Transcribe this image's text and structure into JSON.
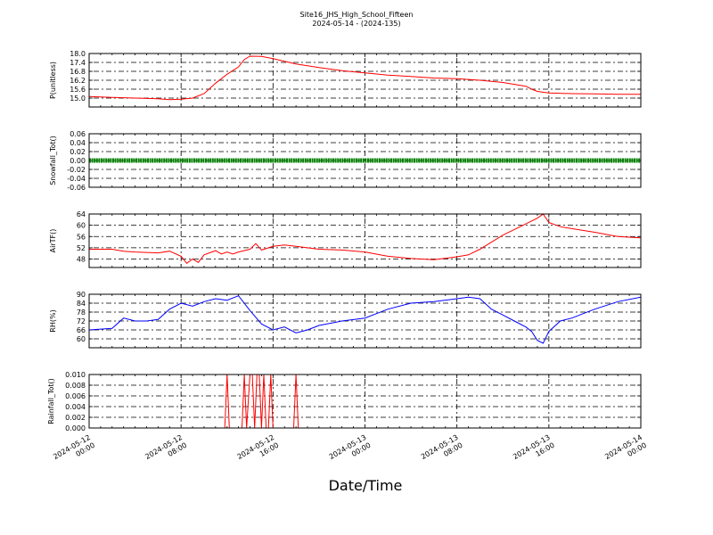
{
  "figure": {
    "title_line1": "Site16_JHS_High_School_Fifteen",
    "title_line2": "2024-05-14 - (2024-135)",
    "xlabel": "Date/Time",
    "x_ticks": [
      "2024-05-12\n00:00",
      "2024-05-12\n08:00",
      "2024-05-12\n16:00",
      "2024-05-13\n00:00",
      "2024-05-13\n08:00",
      "2024-05-13\n16:00",
      "2024-05-14\n00:00"
    ]
  },
  "chart_data": [
    {
      "type": "line",
      "ylabel": "P(unitless)",
      "ylim": [
        14.4,
        18.0
      ],
      "yticks": [
        "15.0",
        "15.6",
        "16.2",
        "16.8",
        "17.4",
        "18.0"
      ],
      "grid": true,
      "series": [
        {
          "color": "#ff0000",
          "x_hours": [
            0,
            2,
            4,
            6,
            7,
            8,
            9,
            10,
            11,
            12,
            13,
            13.5,
            14,
            15,
            16,
            18,
            20,
            22,
            24,
            26,
            28,
            30,
            32,
            34,
            36,
            38,
            38.5,
            39,
            40,
            42,
            44,
            46,
            48
          ],
          "values": [
            15.1,
            15.05,
            15.0,
            14.95,
            14.9,
            14.92,
            15.0,
            15.3,
            16.0,
            16.6,
            17.1,
            17.6,
            17.82,
            17.8,
            17.65,
            17.3,
            17.05,
            16.85,
            16.7,
            16.55,
            16.45,
            16.35,
            16.3,
            16.2,
            16.05,
            15.8,
            15.6,
            15.45,
            15.35,
            15.3,
            15.28,
            15.26,
            15.25
          ]
        }
      ]
    },
    {
      "type": "scatter",
      "ylabel": "Snowfall_Tot()",
      "ylim": [
        -0.06,
        0.06
      ],
      "yticks": [
        "-0.06",
        "-0.04",
        "-0.02",
        "0.00",
        "0.02",
        "0.04",
        "0.06"
      ],
      "grid": true,
      "series": [
        {
          "color": "#008000",
          "x_hours": [
            0,
            48
          ],
          "values": [
            0.0,
            0.0
          ]
        }
      ]
    },
    {
      "type": "line",
      "ylabel": "AirTF()",
      "ylim": [
        45,
        64
      ],
      "yticks": [
        "48",
        "52",
        "56",
        "60",
        "64"
      ],
      "grid": true,
      "series": [
        {
          "color": "#ff0000",
          "x_hours": [
            0,
            2,
            3,
            4,
            6,
            7,
            8,
            8.5,
            9,
            9.5,
            10,
            11,
            11.5,
            12,
            12.5,
            13,
            14,
            14.5,
            15,
            16,
            17,
            18,
            19,
            20,
            22,
            24,
            26,
            28,
            30,
            32,
            33,
            34,
            35,
            36,
            37,
            38,
            39,
            39.5,
            40,
            41,
            42,
            44,
            46,
            48
          ],
          "values": [
            51.5,
            51.5,
            50.8,
            50.5,
            50.2,
            50.8,
            49.0,
            46.5,
            48.0,
            46.8,
            49.5,
            51.0,
            49.8,
            50.5,
            49.8,
            50.5,
            51.5,
            53.5,
            51.2,
            52.5,
            53.0,
            52.5,
            52.0,
            51.5,
            51.2,
            50.5,
            49.0,
            48.2,
            47.8,
            48.8,
            49.5,
            51.5,
            54.0,
            56.5,
            58.5,
            60.5,
            62.5,
            64.0,
            61.0,
            59.5,
            58.8,
            57.5,
            56.0,
            55.5
          ]
        }
      ]
    },
    {
      "type": "line",
      "ylabel": "RH(%)",
      "ylim": [
        54,
        90
      ],
      "yticks": [
        "60",
        "66",
        "72",
        "78",
        "84",
        "90"
      ],
      "grid": true,
      "series": [
        {
          "color": "#0000ff",
          "x_hours": [
            0,
            2,
            3,
            4,
            5,
            6,
            7,
            8,
            9,
            10,
            11,
            12,
            13,
            14,
            15,
            16,
            17,
            18,
            19,
            20,
            22,
            24,
            26,
            28,
            30,
            32,
            33,
            34,
            35,
            36,
            37,
            38,
            38.5,
            39,
            39.5,
            40,
            41,
            42,
            44,
            46,
            48
          ],
          "values": [
            66,
            67,
            74,
            72,
            72,
            73,
            80,
            84,
            82,
            85,
            87,
            86,
            89,
            79,
            70,
            66,
            68,
            64,
            66,
            69,
            72,
            74,
            80,
            84,
            85,
            87,
            88,
            87,
            80,
            76,
            72,
            68,
            65,
            59,
            57,
            65,
            72,
            74,
            80,
            85,
            88
          ]
        }
      ]
    },
    {
      "type": "line",
      "ylabel": "Rainfall_Tot()",
      "ylim": [
        0.0,
        0.01
      ],
      "yticks": [
        "0.000",
        "0.002",
        "0.004",
        "0.006",
        "0.008",
        "0.010"
      ],
      "grid": true,
      "series": [
        {
          "color": "#ff0000",
          "x_hours": [
            0,
            11.8,
            12.0,
            12.2,
            13.3,
            13.5,
            13.7,
            14.0,
            14.2,
            14.4,
            14.6,
            14.8,
            15.0,
            15.2,
            15.4,
            15.6,
            15.8,
            16.0,
            16.2,
            17.8,
            18.0,
            18.2,
            48
          ],
          "values": [
            0,
            0,
            0.01,
            0,
            0,
            0.01,
            0,
            0.01,
            0.01,
            0,
            0.01,
            0.01,
            0,
            0.01,
            0,
            0,
            0.01,
            0,
            0,
            0,
            0.01,
            0,
            0
          ]
        }
      ]
    }
  ]
}
